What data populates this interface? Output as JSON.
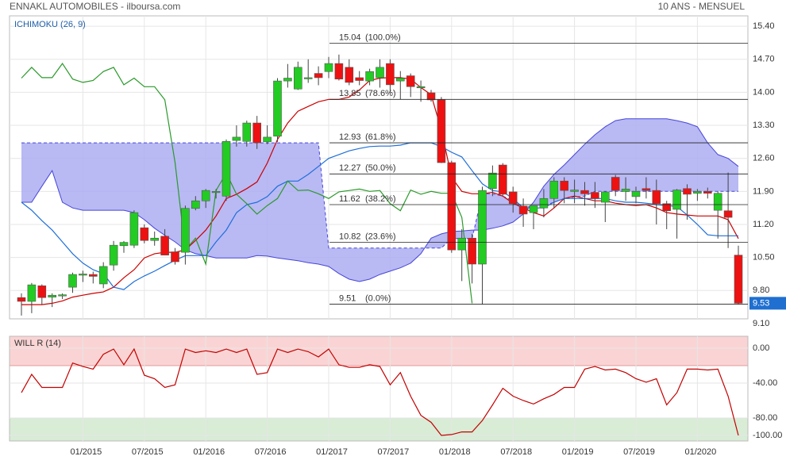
{
  "header": {
    "title": "ENNAKL AUTOMOBILES - ilboursa.com",
    "period": "10 ANS - MENSUEL"
  },
  "chart_data": [
    {
      "type": "candlestick",
      "title": "ICHIMOKU (26, 9)",
      "categories": [
        null,
        null,
        null,
        null,
        null,
        null,
        "01/2015",
        null,
        null,
        null,
        null,
        null,
        "07/2015",
        null,
        null,
        null,
        null,
        null,
        "01/2016",
        null,
        null,
        null,
        null,
        null,
        "07/2016",
        null,
        null,
        null,
        null,
        null,
        "01/2017",
        null,
        null,
        null,
        null,
        null,
        "07/2017",
        null,
        null,
        null,
        null,
        null,
        "01/2018",
        null,
        null,
        null,
        null,
        null,
        "07/2018",
        null,
        null,
        null,
        null,
        null,
        "01/2019",
        null,
        null,
        null,
        null,
        null,
        "07/2019",
        null,
        null,
        null,
        null,
        null,
        "01/2020",
        null,
        null,
        null,
        null
      ],
      "open": [
        9.65,
        9.57,
        9.9,
        9.66,
        9.7,
        9.87,
        10.13,
        10.14,
        9.94,
        10.34,
        10.75,
        10.76,
        11.13,
        10.86,
        10.95,
        10.62,
        10.61,
        11.54,
        11.7,
        11.88,
        11.8,
        12.98,
        12.96,
        13.35,
        12.95,
        13.07,
        14.24,
        14.07,
        14.3,
        14.4,
        14.44,
        14.61,
        14.53,
        14.31,
        14.24,
        14.31,
        14.61,
        14.24,
        14.35,
        14.1,
        13.99,
        13.84,
        12.51,
        10.66,
        10.91,
        10.36,
        11.96,
        12.46,
        11.89,
        11.59,
        11.45,
        11.55,
        11.75,
        12.12,
        11.9,
        11.92,
        11.88,
        11.67,
        12.2,
        11.9,
        11.79,
        11.96,
        11.92,
        11.64,
        11.52,
        11.96,
        11.86,
        11.9,
        11.5,
        11.49,
        10.55
      ],
      "high": [
        9.74,
        9.96,
        9.93,
        9.74,
        9.74,
        10.18,
        10.22,
        10.2,
        10.4,
        10.85,
        10.85,
        11.5,
        11.2,
        11.05,
        11.1,
        10.7,
        11.6,
        11.8,
        11.95,
        11.95,
        13.0,
        13.3,
        13.4,
        13.5,
        13.3,
        14.3,
        14.6,
        14.65,
        14.7,
        14.55,
        14.75,
        14.8,
        14.7,
        14.45,
        14.5,
        14.7,
        14.7,
        14.45,
        14.4,
        14.25,
        14.05,
        13.9,
        12.55,
        11.1,
        11.0,
        12.0,
        12.45,
        12.5,
        12.0,
        11.75,
        11.6,
        11.95,
        12.2,
        12.2,
        12.15,
        12.1,
        12.1,
        11.9,
        12.25,
        12.2,
        12.0,
        12.2,
        12.15,
        11.7,
        11.95,
        12.05,
        11.95,
        11.98,
        11.9,
        12.3,
        10.75
      ],
      "low": [
        9.27,
        9.32,
        9.5,
        9.45,
        9.62,
        9.75,
        9.98,
        9.95,
        9.85,
        10.22,
        10.6,
        10.7,
        10.8,
        10.75,
        10.55,
        10.35,
        10.35,
        11.5,
        11.55,
        11.75,
        11.7,
        12.85,
        12.85,
        12.8,
        12.9,
        12.95,
        14.1,
        14.05,
        14.2,
        14.15,
        14.3,
        14.25,
        14.15,
        14.15,
        14.15,
        14.1,
        14.0,
        13.85,
        13.9,
        13.8,
        13.8,
        12.5,
        10.6,
        10.0,
        9.95,
        9.51,
        11.8,
        11.8,
        11.45,
        11.15,
        11.1,
        11.35,
        11.55,
        11.65,
        11.65,
        11.6,
        11.55,
        11.25,
        11.8,
        11.7,
        11.65,
        11.75,
        11.2,
        11.1,
        10.9,
        11.3,
        11.7,
        11.75,
        10.9,
        10.7,
        9.51
      ],
      "close": [
        9.57,
        9.92,
        9.65,
        9.7,
        9.71,
        10.14,
        10.15,
        10.1,
        10.31,
        10.76,
        10.82,
        11.45,
        10.86,
        10.91,
        10.55,
        10.41,
        11.54,
        11.7,
        11.92,
        11.9,
        12.96,
        13.05,
        13.35,
        12.93,
        13.05,
        14.24,
        14.3,
        14.53,
        14.31,
        14.31,
        14.61,
        14.28,
        14.21,
        14.25,
        14.44,
        14.53,
        14.16,
        14.3,
        14.12,
        14.12,
        13.84,
        12.51,
        10.66,
        10.91,
        10.36,
        11.92,
        12.29,
        11.84,
        11.64,
        11.42,
        11.6,
        11.75,
        12.12,
        11.92,
        11.93,
        11.85,
        11.75,
        11.89,
        11.92,
        11.95,
        11.9,
        11.92,
        11.64,
        11.49,
        11.93,
        11.84,
        11.9,
        11.86,
        11.86,
        11.35,
        9.53
      ],
      "up_color": "#22cc22",
      "down_color": "#ee1111",
      "cloud": {
        "color": "#adadf2",
        "series": [
          {
            "color": "#4646d8",
            "values": [
              11.67,
              11.67,
              12.01,
              12.34,
              11.67,
              11.55,
              11.5,
              11.5,
              11.5,
              11.5,
              11.5,
              11.45,
              11.3,
              11.12,
              10.97,
              10.83,
              10.66,
              10.58,
              10.54,
              10.49,
              10.49,
              10.49,
              10.49,
              10.54,
              10.53,
              10.49,
              10.46,
              10.43,
              10.39,
              10.36,
              10.31,
              10.16,
              10.04,
              9.99,
              10.04,
              10.14,
              10.21,
              10.28,
              10.38,
              10.58,
              10.91,
              11.0,
              11.05,
              11.06,
              11.08,
              11.08,
              11.12,
              11.17,
              11.25,
              11.42,
              11.67,
              12.01,
              12.26,
              12.46,
              12.68,
              12.9,
              13.1,
              13.27,
              13.4,
              13.44,
              13.44,
              13.44,
              13.44,
              13.44,
              13.4,
              13.35,
              13.27,
              12.93,
              12.68,
              12.6,
              12.43
            ]
          },
          {
            "color": "#4646d8",
            "dashed": true,
            "values": [
              12.93,
              12.93,
              12.93,
              12.93,
              12.93,
              12.93,
              12.93,
              12.93,
              12.93,
              12.93,
              12.93,
              12.93,
              12.93,
              12.93,
              12.93,
              12.93,
              12.93,
              12.93,
              12.93,
              12.93,
              12.93,
              12.93,
              12.93,
              12.93,
              12.93,
              12.93,
              12.93,
              12.93,
              12.93,
              12.93,
              10.7,
              10.7,
              10.7,
              10.7,
              10.7,
              10.7,
              10.7,
              10.7,
              10.7,
              10.7,
              10.7,
              10.7,
              10.9,
              10.9,
              10.9,
              11.85,
              11.85,
              11.8,
              11.7,
              11.58,
              11.58,
              11.6,
              11.67,
              11.75,
              11.78,
              11.8,
              11.9,
              11.9,
              11.9,
              11.9,
              11.9,
              11.9,
              11.9,
              11.9,
              11.9,
              11.9,
              11.9,
              11.9,
              11.9,
              11.9,
              11.9
            ]
          }
        ]
      },
      "series": [
        {
          "color": "#cc0000",
          "values": [
            9.5,
            9.5,
            9.5,
            9.53,
            9.58,
            9.66,
            9.7,
            9.74,
            9.77,
            9.87,
            10.07,
            10.24,
            10.49,
            10.58,
            10.61,
            10.61,
            10.66,
            10.86,
            11.08,
            11.38,
            11.75,
            11.84,
            11.96,
            12.1,
            12.5,
            13.0,
            13.35,
            13.6,
            13.7,
            13.8,
            13.85,
            13.85,
            13.9,
            14.05,
            14.25,
            14.3,
            14.31,
            14.31,
            14.28,
            14.1,
            13.95,
            13.2,
            12.2,
            11.9,
            11.85,
            11.85,
            11.88,
            11.8,
            11.65,
            11.55,
            11.45,
            11.38,
            11.55,
            11.75,
            11.8,
            11.75,
            11.7,
            11.7,
            11.65,
            11.62,
            11.6,
            11.62,
            11.55,
            11.45,
            11.42,
            11.4,
            11.38,
            11.38,
            11.38,
            11.3,
            10.9
          ]
        },
        {
          "color": "#1e6fd9",
          "values": [
            11.67,
            11.5,
            11.28,
            11.08,
            10.83,
            10.58,
            10.38,
            10.24,
            10.16,
            9.87,
            9.82,
            9.99,
            10.11,
            10.21,
            10.33,
            10.44,
            10.54,
            10.54,
            10.54,
            10.83,
            11.08,
            11.45,
            11.62,
            11.67,
            11.79,
            12.01,
            12.12,
            12.12,
            12.26,
            12.43,
            12.6,
            12.68,
            12.76,
            12.81,
            12.85,
            12.86,
            12.86,
            12.88,
            12.93,
            12.93,
            12.93,
            12.85,
            12.73,
            12.63,
            12.34,
            12.06,
            11.92,
            11.89,
            11.75,
            11.55,
            11.55,
            11.55,
            11.67,
            11.75,
            11.75,
            11.75,
            11.75,
            11.75,
            11.7,
            11.67,
            11.67,
            11.65,
            11.62,
            11.6,
            11.58,
            11.4,
            11.2,
            10.98,
            10.96,
            10.96,
            10.96
          ]
        },
        {
          "color": "#2a9a2a",
          "values": [
            14.3,
            14.53,
            14.31,
            14.31,
            14.61,
            14.28,
            14.21,
            14.25,
            14.44,
            14.53,
            14.16,
            14.3,
            14.12,
            14.12,
            13.84,
            12.51,
            10.66,
            10.91,
            10.36,
            11.92,
            12.29,
            11.84,
            11.64,
            11.42,
            11.6,
            11.75,
            12.12,
            11.92,
            11.93,
            11.85,
            11.75,
            11.89,
            11.92,
            11.95,
            11.9,
            11.92,
            11.64,
            11.49,
            11.93,
            11.84,
            11.9,
            11.86,
            11.86,
            11.35,
            9.53,
            null,
            null,
            null,
            null,
            null,
            null,
            null,
            null,
            null,
            null,
            null,
            null,
            null,
            null,
            null,
            null,
            null,
            null,
            null,
            null,
            null,
            null,
            null,
            null,
            null,
            null
          ]
        }
      ],
      "levels": [
        {
          "value": 15.04,
          "label": "(100.0%)"
        },
        {
          "value": 13.85,
          "label": "(78.6%)"
        },
        {
          "value": 12.93,
          "label": "(61.8%)"
        },
        {
          "value": 12.27,
          "label": "(50.0%)"
        },
        {
          "value": 11.62,
          "label": "(38.2%)"
        },
        {
          "value": 10.82,
          "label": "(23.6%)"
        },
        {
          "value": 9.51,
          "label": "(0.0%)"
        }
      ],
      "ylim": [
        9.2,
        15.62
      ],
      "yticks": [
        {
          "value": 15.4,
          "label": "15.40"
        },
        {
          "value": 14.7,
          "label": "14.70"
        },
        {
          "value": 14.0,
          "label": "14.00"
        },
        {
          "value": 13.3,
          "label": "13.30"
        },
        {
          "value": 12.6,
          "label": "12.60"
        },
        {
          "value": 11.9,
          "label": "11.90"
        },
        {
          "value": 11.2,
          "label": "11.20"
        },
        {
          "value": 10.5,
          "label": "10.50"
        },
        {
          "value": 9.8,
          "label": "9.80"
        },
        {
          "value": 9.1,
          "label": "9.10"
        }
      ],
      "grid": true
    },
    {
      "type": "line",
      "title": "WILL R (14)",
      "color": "#c40000",
      "values": [
        -51,
        -30,
        -45,
        -45,
        -45,
        -17,
        -21,
        -24,
        -7,
        -1,
        -19,
        -1,
        -31,
        -35,
        -45,
        -42,
        -1,
        -5,
        -3,
        -5,
        -1,
        -5,
        -1,
        -30,
        -28,
        -1,
        -5,
        -1,
        -4,
        -10,
        -1,
        -19,
        -22,
        -22,
        -19,
        -21,
        -42,
        -28,
        -55,
        -77,
        -85,
        -100,
        -99,
        -96,
        -96,
        -83,
        -65,
        -46,
        -55,
        -60,
        -64,
        -58,
        -53,
        -45,
        -45,
        -24,
        -21,
        -25,
        -24,
        -28,
        -35,
        -39,
        -35,
        -65,
        -51,
        -24,
        -24,
        -25,
        -24,
        -55,
        -100
      ],
      "overbought": -20,
      "oversold": -80,
      "overbought_color": "#fad4d4",
      "oversold_color": "#d8ecd6",
      "ylim": [
        -106.4,
        13.6
      ],
      "yticks": [
        {
          "value": 0,
          "label": "0.00"
        },
        {
          "value": -40,
          "label": "-40.00"
        },
        {
          "value": -80,
          "label": "-80.00"
        },
        {
          "value": -100,
          "label": "-100.00"
        }
      ],
      "grid": true
    }
  ]
}
